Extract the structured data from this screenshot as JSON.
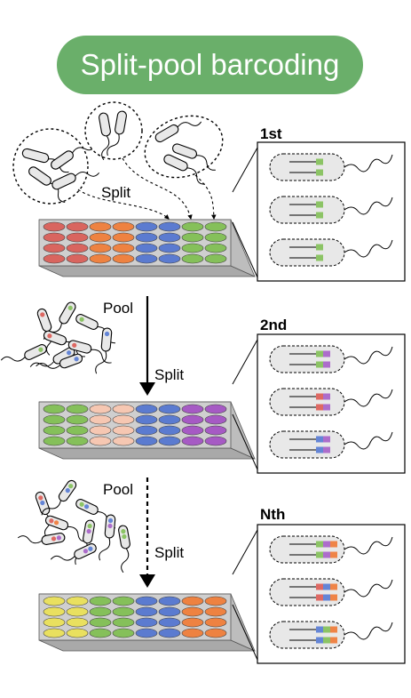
{
  "title": "Split-pool barcoding",
  "colors": {
    "title_bg": "#6aaf6a",
    "red": "#d9655f",
    "orange": "#ee8241",
    "blue": "#5b7bd0",
    "green": "#85c05a",
    "salmon": "#f6c7b2",
    "purple": "#a65ac4",
    "yellow": "#e9e05f",
    "plate": "#cfcfcf",
    "plate_side": "#a9a9a9",
    "cell_fill": "#e8e8e8",
    "barcode_green": "#8cc465",
    "barcode_purple": "#ad6dcb",
    "barcode_red": "#de6963",
    "barcode_blue": "#6485d6",
    "barcode_orange": "#ef8447"
  },
  "rounds": [
    {
      "label": "1st",
      "pool_label": "",
      "split_label": "Split",
      "plate_columns": [
        "red",
        "red",
        "orange",
        "orange",
        "blue",
        "blue",
        "green",
        "green"
      ],
      "barcodes": [
        [
          "green"
        ],
        [
          "green"
        ],
        [
          "green"
        ]
      ]
    },
    {
      "label": "2nd",
      "pool_label": "Pool",
      "split_label": "Split",
      "plate_columns": [
        "green",
        "green",
        "salmon",
        "salmon",
        "blue",
        "blue",
        "purple",
        "purple"
      ],
      "barcodes": [
        [
          "green",
          "purple"
        ],
        [
          "red",
          "purple"
        ],
        [
          "blue",
          "purple"
        ]
      ]
    },
    {
      "label": "Nth",
      "pool_label": "Pool",
      "split_label": "Split",
      "plate_columns": [
        "yellow",
        "yellow",
        "green",
        "green",
        "blue",
        "blue",
        "orange",
        "orange"
      ],
      "barcodes": [
        [
          "green",
          "purple",
          "orange"
        ],
        [
          "red",
          "blue",
          "orange"
        ],
        [
          "blue",
          "green",
          "orange"
        ]
      ]
    }
  ]
}
